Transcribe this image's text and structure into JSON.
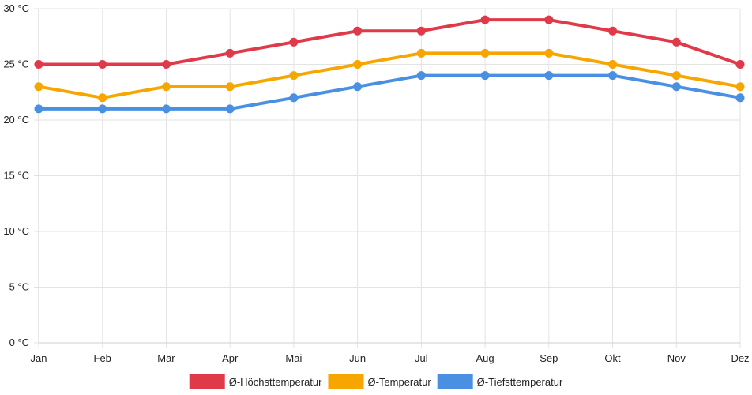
{
  "chart_data": {
    "type": "line",
    "categories": [
      "Jan",
      "Feb",
      "Mär",
      "Apr",
      "Mai",
      "Jun",
      "Jul",
      "Aug",
      "Sep",
      "Okt",
      "Nov",
      "Dez"
    ],
    "y_ticks": [
      "0 °C",
      "5 °C",
      "10 °C",
      "15 °C",
      "20 °C",
      "25 °C",
      "30 °C"
    ],
    "ylim": [
      0,
      30
    ],
    "grid": true,
    "legend_position": "bottom",
    "series": [
      {
        "name": "Ø-Höchsttemperatur",
        "color": "#e0394a",
        "values": [
          25,
          25,
          25,
          26,
          27,
          28,
          28,
          29,
          29,
          28,
          27,
          25
        ]
      },
      {
        "name": "Ø-Temperatur",
        "color": "#f7a600",
        "values": [
          23,
          22,
          23,
          23,
          24,
          25,
          26,
          26,
          26,
          25,
          24,
          23
        ]
      },
      {
        "name": "Ø-Tiefsttemperatur",
        "color": "#4a90e2",
        "values": [
          21,
          21,
          21,
          21,
          22,
          23,
          24,
          24,
          24,
          24,
          23,
          22
        ]
      }
    ]
  }
}
